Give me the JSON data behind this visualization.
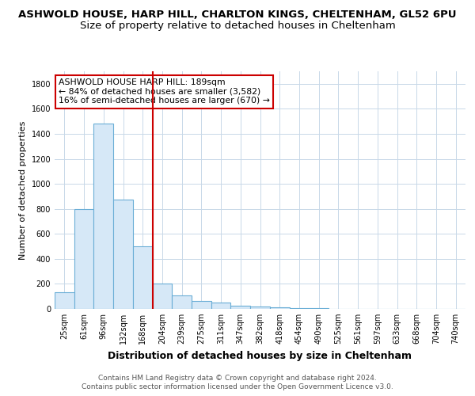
{
  "title_line1": "ASHWOLD HOUSE, HARP HILL, CHARLTON KINGS, CHELTENHAM, GL52 6PU",
  "title_line2": "Size of property relative to detached houses in Cheltenham",
  "xlabel": "Distribution of detached houses by size in Cheltenham",
  "ylabel": "Number of detached properties",
  "categories": [
    "25sqm",
    "61sqm",
    "96sqm",
    "132sqm",
    "168sqm",
    "204sqm",
    "239sqm",
    "275sqm",
    "311sqm",
    "347sqm",
    "382sqm",
    "418sqm",
    "454sqm",
    "490sqm",
    "525sqm",
    "561sqm",
    "597sqm",
    "633sqm",
    "668sqm",
    "704sqm",
    "740sqm"
  ],
  "values": [
    130,
    800,
    1480,
    875,
    500,
    205,
    110,
    65,
    50,
    25,
    20,
    15,
    5,
    5,
    3,
    2,
    2,
    1,
    1,
    1,
    0
  ],
  "bar_color": "#d6e8f7",
  "bar_edge_color": "#6aaed6",
  "red_line_index": 4.5,
  "annotation_text": "ASHWOLD HOUSE HARP HILL: 189sqm\n← 84% of detached houses are smaller (3,582)\n16% of semi-detached houses are larger (670) →",
  "annotation_box_color": "#ffffff",
  "annotation_box_edge": "#cc0000",
  "footer_line1": "Contains HM Land Registry data © Crown copyright and database right 2024.",
  "footer_line2": "Contains public sector information licensed under the Open Government Licence v3.0.",
  "ylim": [
    0,
    1900
  ],
  "yticks": [
    0,
    200,
    400,
    600,
    800,
    1000,
    1200,
    1400,
    1600,
    1800
  ],
  "background_color": "#ffffff",
  "plot_bg_color": "#ffffff",
  "grid_color": "#c8d8e8",
  "title_fontsize": 9.5,
  "subtitle_fontsize": 9.5,
  "xlabel_fontsize": 9,
  "ylabel_fontsize": 8,
  "tick_fontsize": 7,
  "footer_fontsize": 6.5
}
